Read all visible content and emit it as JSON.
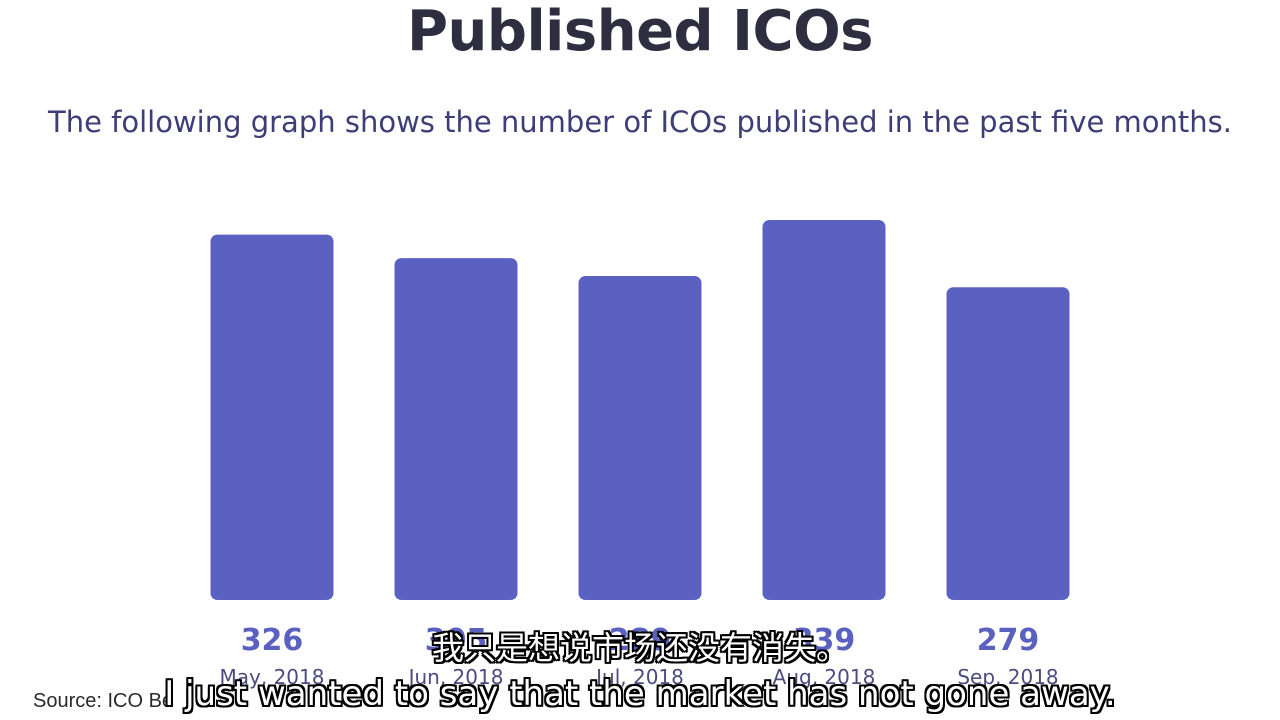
{
  "chart_data": {
    "type": "bar",
    "title": "Published ICOs",
    "subtitle": "The following graph shows the number of ICOs published in the past five months.",
    "categories": [
      "May, 2018",
      "Jun, 2018",
      "Jul, 2018",
      "Aug, 2018",
      "Sep, 2018"
    ],
    "values": [
      326,
      305,
      289,
      339,
      279
    ],
    "value_labels": [
      "326",
      "305",
      "289",
      "339",
      "279"
    ],
    "xlabel": "",
    "ylabel": "",
    "ylim": [
      0,
      339
    ],
    "grid": false,
    "bar_color": "#5b61c0"
  },
  "source": "Source: ICO Be",
  "subtitles": {
    "zh": "我只是想说市场还没有消失。",
    "en": "I just wanted to say that the market has not gone away."
  },
  "colors": {
    "bar": "#5b61c0",
    "value_label": "#5b61c0",
    "category_label": "#4b4b80",
    "title": "#2e2e40",
    "subtitle": "#3d3d78"
  }
}
